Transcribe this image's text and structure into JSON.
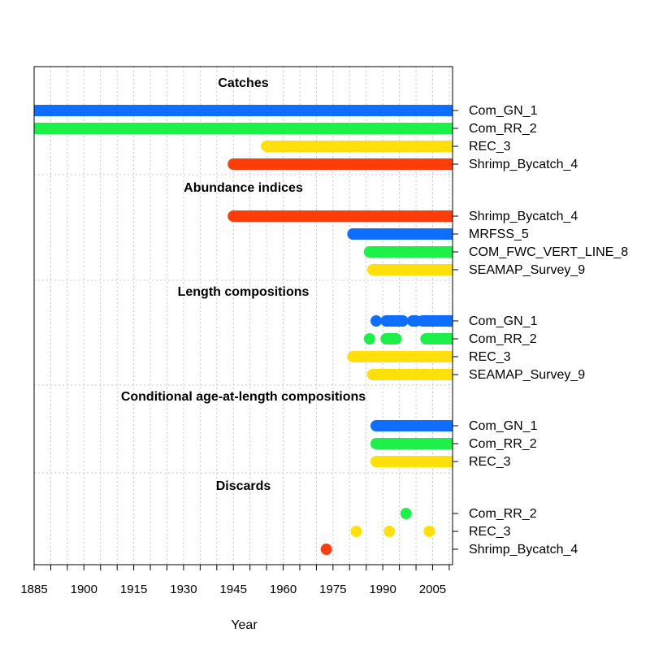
{
  "chart_data": {
    "type": "timeline",
    "xlabel": "Year",
    "xlim": [
      1885,
      2011
    ],
    "x_ticks": [
      1885,
      1890,
      1895,
      1900,
      1905,
      1910,
      1915,
      1920,
      1925,
      1930,
      1935,
      1940,
      1945,
      1950,
      1955,
      1960,
      1965,
      1970,
      1975,
      1980,
      1985,
      1990,
      1995,
      2000,
      2005,
      2010
    ],
    "x_tick_labels": [
      "1885",
      "1900",
      "1915",
      "1930",
      "1945",
      "1960",
      "1975",
      "1990",
      "2005"
    ],
    "x_tick_label_values": [
      1885,
      1900,
      1915,
      1930,
      1945,
      1960,
      1975,
      1990,
      2005
    ],
    "colors": {
      "blue": "#0D6EFF",
      "green": "#1EF04A",
      "yellow": "#FFE00A",
      "red": "#FF3D0A"
    },
    "sections": [
      {
        "title": "Catches",
        "rows": [
          {
            "label": "Com_GN_1",
            "color": "blue",
            "segments": [
              [
                1885,
                2011
              ]
            ]
          },
          {
            "label": "Com_RR_2",
            "color": "green",
            "segments": [
              [
                1885,
                2011
              ]
            ]
          },
          {
            "label": "REC_3",
            "color": "yellow",
            "segments": [
              [
                1955,
                2011
              ]
            ]
          },
          {
            "label": "Shrimp_Bycatch_4",
            "color": "red",
            "segments": [
              [
                1945,
                2011
              ]
            ]
          }
        ]
      },
      {
        "title": "Abundance indices",
        "rows": [
          {
            "label": "Shrimp_Bycatch_4",
            "color": "red",
            "segments": [
              [
                1945,
                2011
              ]
            ]
          },
          {
            "label": "MRFSS_5",
            "color": "blue",
            "segments": [
              [
                1981,
                2011
              ]
            ]
          },
          {
            "label": "COM_FWC_VERT_LINE_8",
            "color": "green",
            "segments": [
              [
                1986,
                2011
              ]
            ]
          },
          {
            "label": "SEAMAP_Survey_9",
            "color": "yellow",
            "segments": [
              [
                1987,
                2011
              ]
            ]
          }
        ]
      },
      {
        "title": "Length compositions",
        "rows": [
          {
            "label": "Com_GN_1",
            "color": "blue",
            "segments": [
              [
                1988,
                1988
              ],
              [
                1991,
                1996
              ],
              [
                1999,
                2000
              ],
              [
                2002,
                2011
              ]
            ]
          },
          {
            "label": "Com_RR_2",
            "color": "green",
            "segments": [
              [
                1986,
                1986
              ],
              [
                1991,
                1994
              ],
              [
                2003,
                2011
              ]
            ]
          },
          {
            "label": "REC_3",
            "color": "yellow",
            "segments": [
              [
                1981,
                2011
              ]
            ]
          },
          {
            "label": "SEAMAP_Survey_9",
            "color": "yellow",
            "segments": [
              [
                1987,
                2011
              ]
            ]
          }
        ]
      },
      {
        "title": "Conditional age-at-length compositions",
        "rows": [
          {
            "label": "Com_GN_1",
            "color": "blue",
            "segments": [
              [
                1988,
                2011
              ]
            ]
          },
          {
            "label": "Com_RR_2",
            "color": "green",
            "segments": [
              [
                1988,
                2011
              ]
            ]
          },
          {
            "label": "REC_3",
            "color": "yellow",
            "segments": [
              [
                1988,
                2011
              ]
            ]
          }
        ]
      },
      {
        "title": "Discards",
        "rows": [
          {
            "label": "Com_RR_2",
            "color": "green",
            "segments": [
              [
                1997,
                1997
              ]
            ]
          },
          {
            "label": "REC_3",
            "color": "yellow",
            "segments": [
              [
                1982,
                1982
              ],
              [
                1992,
                1992
              ],
              [
                2004,
                2004
              ]
            ]
          },
          {
            "label": "Shrimp_Bycatch_4",
            "color": "red",
            "segments": [
              [
                1973,
                1973
              ]
            ]
          }
        ]
      }
    ]
  }
}
